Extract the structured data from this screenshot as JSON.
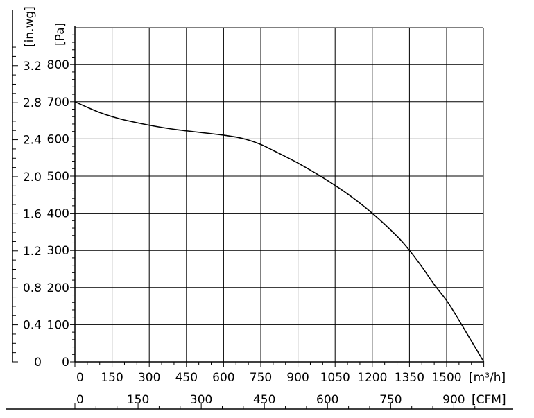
{
  "chart_data": {
    "type": "line",
    "title": "",
    "grid": true,
    "x_primary": {
      "unit": "[m³/h]",
      "range": [
        0,
        1650
      ],
      "ticks": [
        "0",
        "150",
        "300",
        "450",
        "600",
        "750",
        "900",
        "1050",
        "1200",
        "1350",
        "1500"
      ]
    },
    "x_secondary": {
      "unit": "[CFM]",
      "ticks": [
        {
          "value": 0,
          "label": "0"
        },
        {
          "value": 150,
          "label": "150"
        },
        {
          "value": 300,
          "label": "300"
        },
        {
          "value": 450,
          "label": "450"
        },
        {
          "value": 600,
          "label": "600"
        },
        {
          "value": 750,
          "label": "750"
        },
        {
          "value": 900,
          "label": "900"
        }
      ]
    },
    "y_primary": {
      "unit": "[Pa]",
      "range": [
        0,
        900
      ],
      "ticks": [
        "0",
        "100",
        "200",
        "300",
        "400",
        "500",
        "600",
        "700",
        "800"
      ]
    },
    "y_secondary": {
      "unit": "[in.wg]",
      "ticks": [
        {
          "value": 0,
          "label": "0"
        },
        {
          "value": 0.4,
          "label": "0.4"
        },
        {
          "value": 0.8,
          "label": "0.8"
        },
        {
          "value": 1.2,
          "label": "1.2"
        },
        {
          "value": 1.6,
          "label": "1.6"
        },
        {
          "value": 2.0,
          "label": "2.0"
        },
        {
          "value": 2.4,
          "label": "2.4"
        },
        {
          "value": 2.8,
          "label": "2.8"
        },
        {
          "value": 3.2,
          "label": "3.2"
        }
      ]
    },
    "series": [
      {
        "color": "#000000",
        "x": [
          0,
          50,
          100,
          150,
          200,
          300,
          400,
          500,
          600,
          650,
          700,
          750,
          800,
          900,
          1000,
          1100,
          1200,
          1300,
          1350,
          1400,
          1450,
          1500,
          1550,
          1650
        ],
        "y": [
          700,
          685,
          671,
          660,
          651,
          637,
          626,
          618,
          610,
          605,
          597,
          585,
          569,
          535,
          496,
          452,
          400,
          338,
          300,
          256,
          208,
          165,
          112,
          0
        ]
      }
    ]
  }
}
